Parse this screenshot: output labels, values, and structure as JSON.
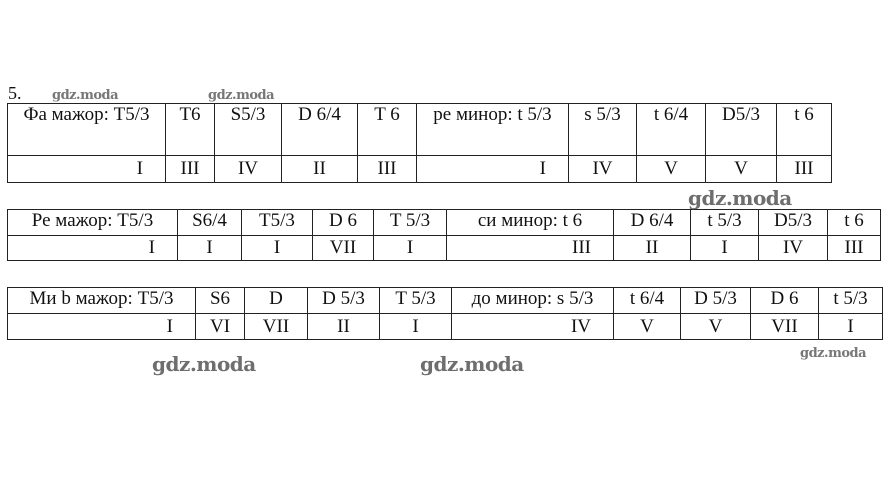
{
  "exercise_number": "5.",
  "watermark": "gdz.moda",
  "tables": [
    {
      "row1": [
        "Фа мажор: T5/3",
        "T6",
        "S5/3",
        "D 6/4",
        "T 6",
        "ре минор: t 5/3",
        "s 5/3",
        "t 6/4",
        "D5/3",
        "t 6"
      ],
      "row2": [
        "I",
        "III",
        "IV",
        "II",
        "III",
        "I",
        "IV",
        "V",
        "V",
        "III"
      ]
    },
    {
      "row1": [
        "Ре мажор: T5/3",
        "S6/4",
        "T5/3",
        "D 6",
        "T 5/3",
        "си минор: t 6",
        "D 6/4",
        "t 5/3",
        "D5/3",
        "t 6"
      ],
      "row2": [
        "I",
        "I",
        "I",
        "VII",
        "I",
        "III",
        "II",
        "I",
        "IV",
        "III"
      ]
    },
    {
      "row1": [
        "Ми b мажор: T5/3",
        "S6",
        "D",
        "D 5/3",
        "T 5/3",
        "до минор: s 5/3",
        "t 6/4",
        "D 5/3",
        "D 6",
        "t 5/3"
      ],
      "row2": [
        "I",
        "VI",
        "VII",
        "II",
        "I",
        "IV",
        "V",
        "V",
        "VII",
        "I"
      ]
    }
  ]
}
